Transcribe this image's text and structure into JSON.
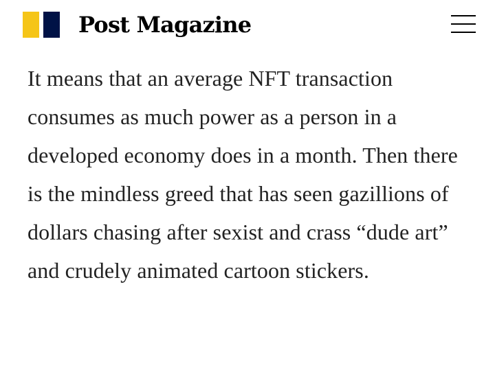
{
  "header": {
    "brand_name": "Post Magazine",
    "logo_colors": {
      "yellow": "#F5C518",
      "navy": "#001246"
    },
    "menu_icon": "hamburger-menu-icon",
    "menu_icon_color": "#000000"
  },
  "article": {
    "paragraph": "It means that an average NFT transaction consumes as much power as a person in a developed economy does in a month. Then there is the mindless greed that has seen gazillions of dollars chasing after sexist and crass “dude art” and crudely animated cartoon stickers."
  }
}
